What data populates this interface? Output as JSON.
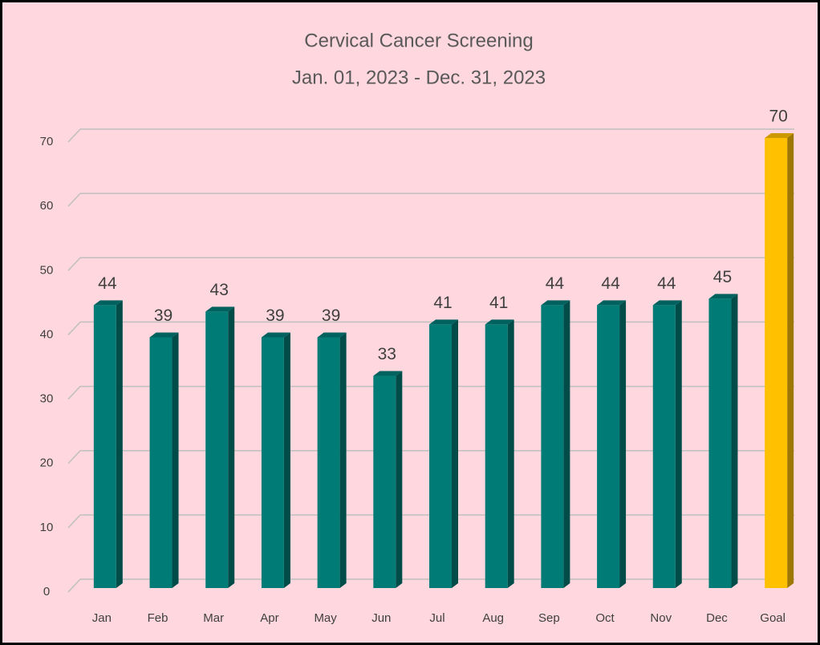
{
  "chart_data": {
    "type": "bar3d",
    "title": "Cervical Cancer Screening",
    "subtitle": "Jan. 01, 2023 - Dec. 31, 2023",
    "categories": [
      "Jan",
      "Feb",
      "Mar",
      "Apr",
      "May",
      "Jun",
      "Jul",
      "Aug",
      "Sep",
      "Oct",
      "Nov",
      "Dec",
      "Goal"
    ],
    "values": [
      44,
      39,
      43,
      39,
      39,
      33,
      41,
      41,
      44,
      44,
      44,
      45,
      70
    ],
    "colors": [
      "#007b75",
      "#007b75",
      "#007b75",
      "#007b75",
      "#007b75",
      "#007b75",
      "#007b75",
      "#007b75",
      "#007b75",
      "#007b75",
      "#007b75",
      "#007b75",
      "#ffc000"
    ],
    "ylim": [
      0,
      70
    ],
    "yticks": [
      0,
      10,
      20,
      30,
      40,
      50,
      60,
      70
    ],
    "grid": true,
    "background": "#ffd7df"
  }
}
